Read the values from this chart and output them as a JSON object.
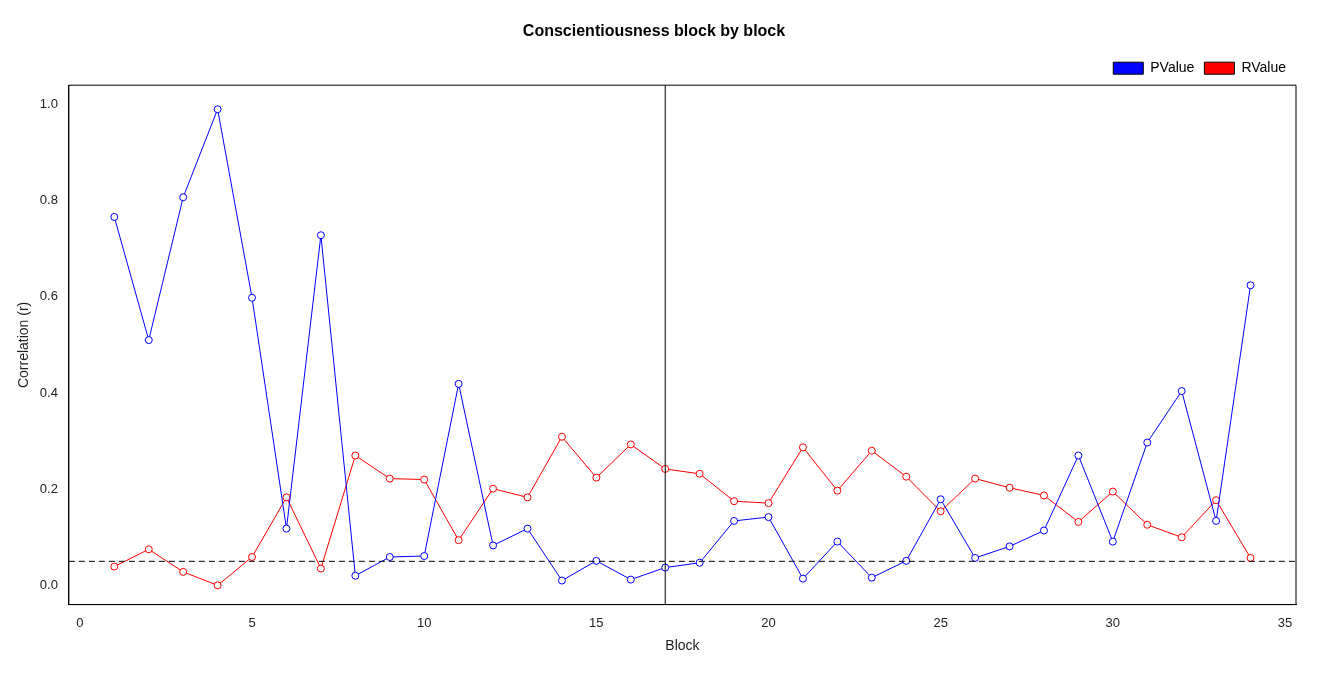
{
  "chart_data": {
    "type": "line",
    "title": "Conscientiousness block by block",
    "xlabel": "Block",
    "ylabel": "Correlation (r)",
    "x": [
      1,
      2,
      3,
      4,
      5,
      6,
      7,
      8,
      9,
      10,
      11,
      12,
      13,
      14,
      15,
      16,
      17,
      18,
      19,
      20,
      21,
      22,
      23,
      24,
      25,
      26,
      27,
      28,
      29,
      30,
      31,
      32,
      33,
      34
    ],
    "series": [
      {
        "name": "PValue",
        "color": "#0000ff",
        "values": [
          0.766,
          0.51,
          0.807,
          0.99,
          0.598,
          0.118,
          0.728,
          0.02,
          0.059,
          0.061,
          0.419,
          0.083,
          0.118,
          0.01,
          0.051,
          0.012,
          0.037,
          0.047,
          0.134,
          0.142,
          0.014,
          0.091,
          0.016,
          0.051,
          0.179,
          0.057,
          0.081,
          0.114,
          0.27,
          0.091,
          0.297,
          0.404,
          0.134,
          0.624
        ]
      },
      {
        "name": "RValue",
        "color": "#ff0000",
        "values": [
          0.039,
          0.075,
          0.028,
          0.0,
          0.059,
          0.183,
          0.035,
          0.27,
          0.222,
          0.22,
          0.094,
          0.201,
          0.183,
          0.309,
          0.224,
          0.293,
          0.242,
          0.232,
          0.175,
          0.171,
          0.287,
          0.197,
          0.28,
          0.226,
          0.154,
          0.222,
          0.203,
          0.187,
          0.132,
          0.195,
          0.126,
          0.1,
          0.177,
          0.057
        ]
      }
    ],
    "xlim": [
      -0.32,
      35.32
    ],
    "xticks": [
      0,
      5,
      10,
      15,
      20,
      25,
      30,
      35
    ],
    "ylim": [
      -0.04,
      1.04
    ],
    "yticks": [
      {
        "value": 0,
        "label": "0.0"
      },
      {
        "value": 0.2,
        "label": "0.2"
      },
      {
        "value": 0.4,
        "label": "0.4"
      },
      {
        "value": 0.6,
        "label": "0.6"
      },
      {
        "value": 0.8,
        "label": "0.8"
      },
      {
        "value": 1,
        "label": "1.0"
      }
    ],
    "ref_lines": [
      {
        "axis": "y",
        "value": 0.05,
        "color": "#000000",
        "line_style": "dashed"
      },
      {
        "axis": "x",
        "value": 17,
        "color": "#000000",
        "line_style": "solid"
      }
    ],
    "grid": false,
    "legend": "top right",
    "marker": "circle",
    "line_style": "solid"
  }
}
